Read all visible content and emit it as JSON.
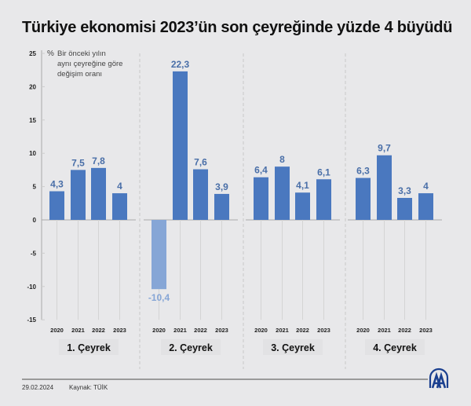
{
  "title": "Türkiye ekonomisi 2023’ün son çeyreğinde yüzde 4 büyüdü",
  "footer": {
    "date": "29.02.2024",
    "source": "Kaynak: TÜİK",
    "logo": "aa-logo-icon"
  },
  "colors": {
    "bar": "#4a78bf",
    "bar_negative": "#86a6d6",
    "label": "#4a6fa8",
    "background": "#e8e8ea"
  },
  "chart_data": {
    "type": "bar",
    "title": "Türkiye ekonomisi 2023’ün son çeyreğinde yüzde 4 büyüdü",
    "ylabel": "% Bir önceki yılın aynı çeyreğine göre değişim oranı",
    "annotation": [
      "%",
      "Bir önceki yılın",
      "aynı çeyreğine göre",
      "değişim oranı"
    ],
    "ylim": [
      -15,
      25
    ],
    "yticks": [
      25,
      20,
      15,
      10,
      5,
      0,
      -5,
      -10,
      -15
    ],
    "groups": [
      "1. Çeyrek",
      "2. Çeyrek",
      "3. Çeyrek",
      "4. Çeyrek"
    ],
    "categories": [
      "2020",
      "2021",
      "2022",
      "2023"
    ],
    "series": [
      {
        "name": "1. Çeyrek",
        "values": [
          4.3,
          7.5,
          7.8,
          4
        ],
        "labels": [
          "4,3",
          "7,5",
          "7,8",
          "4"
        ]
      },
      {
        "name": "2. Çeyrek",
        "values": [
          -10.4,
          22.3,
          7.6,
          3.9
        ],
        "labels": [
          "-10,4",
          "22,3",
          "7,6",
          "3,9"
        ]
      },
      {
        "name": "3. Çeyrek",
        "values": [
          6.4,
          8,
          4.1,
          6.1
        ],
        "labels": [
          "6,4",
          "8",
          "4,1",
          "6,1"
        ]
      },
      {
        "name": "4. Çeyrek",
        "values": [
          6.3,
          9.7,
          3.3,
          4
        ],
        "labels": [
          "6,3",
          "9,7",
          "3,3",
          "4"
        ]
      }
    ],
    "grid": false,
    "legend": "none"
  }
}
